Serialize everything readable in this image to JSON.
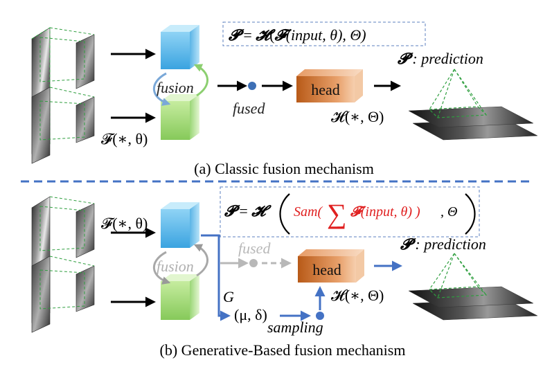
{
  "panel_a": {
    "formula": {
      "P": "𝓟",
      "eq": " = ",
      "H": "𝓗",
      "open1": "(",
      "F": "𝓕",
      "args": "(input, θ), Θ)"
    },
    "prediction_symbol": "𝓟",
    "prediction_text": " : prediction",
    "fusion_label": "fusion",
    "fused_label": "fused",
    "head_label": "head",
    "head_func": "𝓗(∗, Θ)",
    "backbone_func": "𝓕(∗, θ)",
    "caption": "(a) Classic fusion mechanism"
  },
  "panel_b": {
    "formula": {
      "P": "𝓟",
      "eq": " = ",
      "H": "𝓗",
      "sam": "Sam(",
      "sum": "∑",
      "F": "𝓕",
      "inner": "(input, θ) )",
      "tail": ", Θ"
    },
    "prediction_symbol": "𝓟",
    "prediction_text": " : prediction",
    "backbone_func": "𝓕(∗, θ)",
    "fusion_label": "fusion",
    "fused_label": "fused",
    "head_label": "head",
    "head_func": "𝓗(∗, Θ)",
    "g_label": "G",
    "mu_delta": "(μ, δ)",
    "sampling_label": "sampling",
    "caption": "(b) Generative-Based fusion mechanism"
  },
  "colors": {
    "blue_arrow": "#4472c4",
    "dashed_divider": "#4472c4",
    "formula_box": "#5b7fbf",
    "red_text": "#e02020",
    "head_orange": "#d2691e",
    "fusion_blue": "#5bb8ea",
    "fusion_green": "#9bd36a",
    "grey_faded": "#b8b8b8",
    "pyramid_green": "#2e9e3e"
  }
}
